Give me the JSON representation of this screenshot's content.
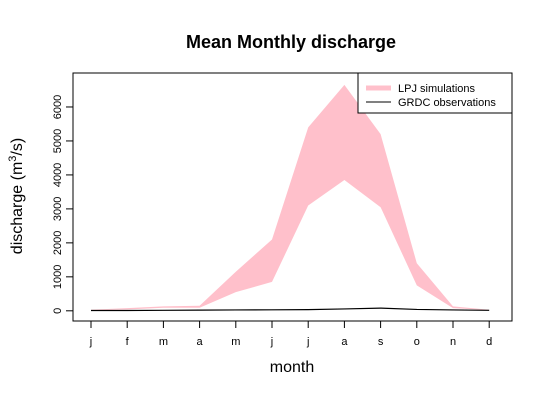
{
  "chart_data": {
    "type": "area",
    "title": "Mean Monthly discharge",
    "xlabel": "month",
    "ylabel_main": "discharge (m",
    "ylabel_sup": "3",
    "ylabel_end": "/s)",
    "categories": [
      "j",
      "f",
      "m",
      "a",
      "m",
      "j",
      "j",
      "a",
      "s",
      "o",
      "n",
      "d"
    ],
    "yticks": [
      0,
      1000,
      2000,
      3000,
      4000,
      5000,
      6000
    ],
    "ylim": [
      -300,
      7000
    ],
    "series": [
      {
        "name": "LPJ simulations",
        "kind": "band",
        "color": "#ffc0cb",
        "lower": [
          20,
          40,
          90,
          90,
          550,
          850,
          3100,
          3850,
          3050,
          750,
          80,
          20
        ],
        "upper": [
          30,
          80,
          130,
          150,
          1150,
          2100,
          5400,
          6650,
          5200,
          1400,
          130,
          30
        ]
      },
      {
        "name": "GRDC observations",
        "kind": "line",
        "color": "#000000",
        "values": [
          10,
          10,
          15,
          20,
          25,
          30,
          35,
          55,
          80,
          40,
          25,
          15
        ]
      }
    ],
    "legend_position": "top-right",
    "grid": false
  }
}
